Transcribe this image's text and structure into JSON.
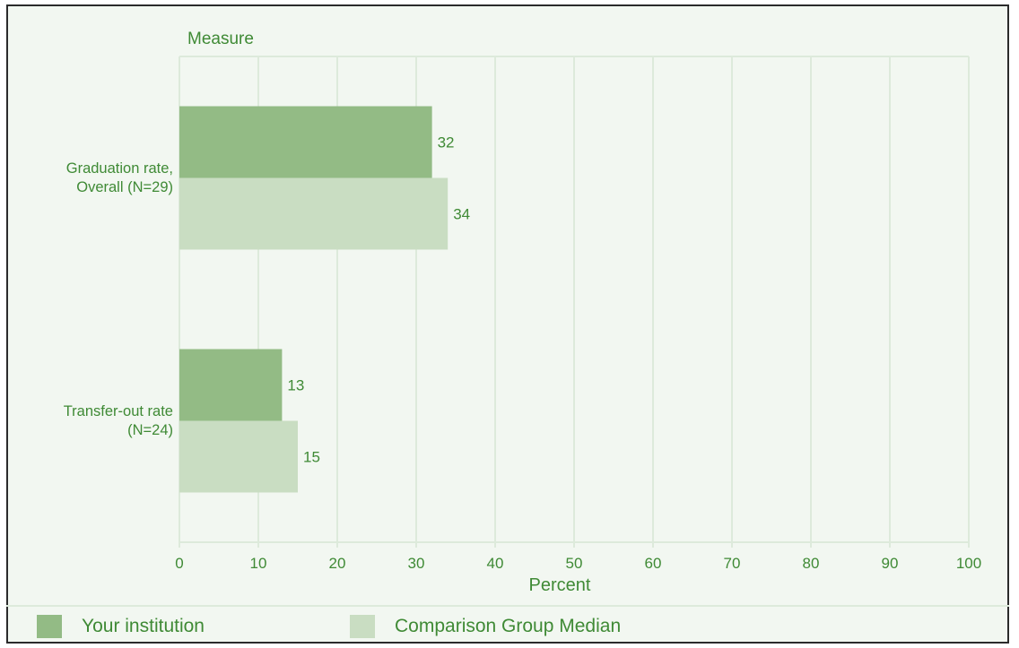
{
  "chart_data": {
    "type": "bar",
    "orientation": "horizontal",
    "title": "Measure",
    "xlabel": "Percent",
    "ylabel": "",
    "xlim": [
      0,
      100
    ],
    "x_ticks": [
      0,
      10,
      20,
      30,
      40,
      50,
      60,
      70,
      80,
      90,
      100
    ],
    "grid": true,
    "categories": [
      [
        "Graduation rate,",
        "Overall (N=29)"
      ],
      [
        "Transfer-out rate",
        "(N=24)"
      ]
    ],
    "series": [
      {
        "name": "Your institution",
        "values": [
          32,
          13
        ],
        "color": "#93bb85"
      },
      {
        "name": "Comparison Group Median",
        "values": [
          34,
          15
        ],
        "color": "#c9ddc2"
      }
    ],
    "legend_position": "bottom"
  },
  "colors": {
    "text": "#3f8a35",
    "grid": "#ddeadb",
    "background": "#f2f7f1",
    "border": "#2b2b2b"
  }
}
